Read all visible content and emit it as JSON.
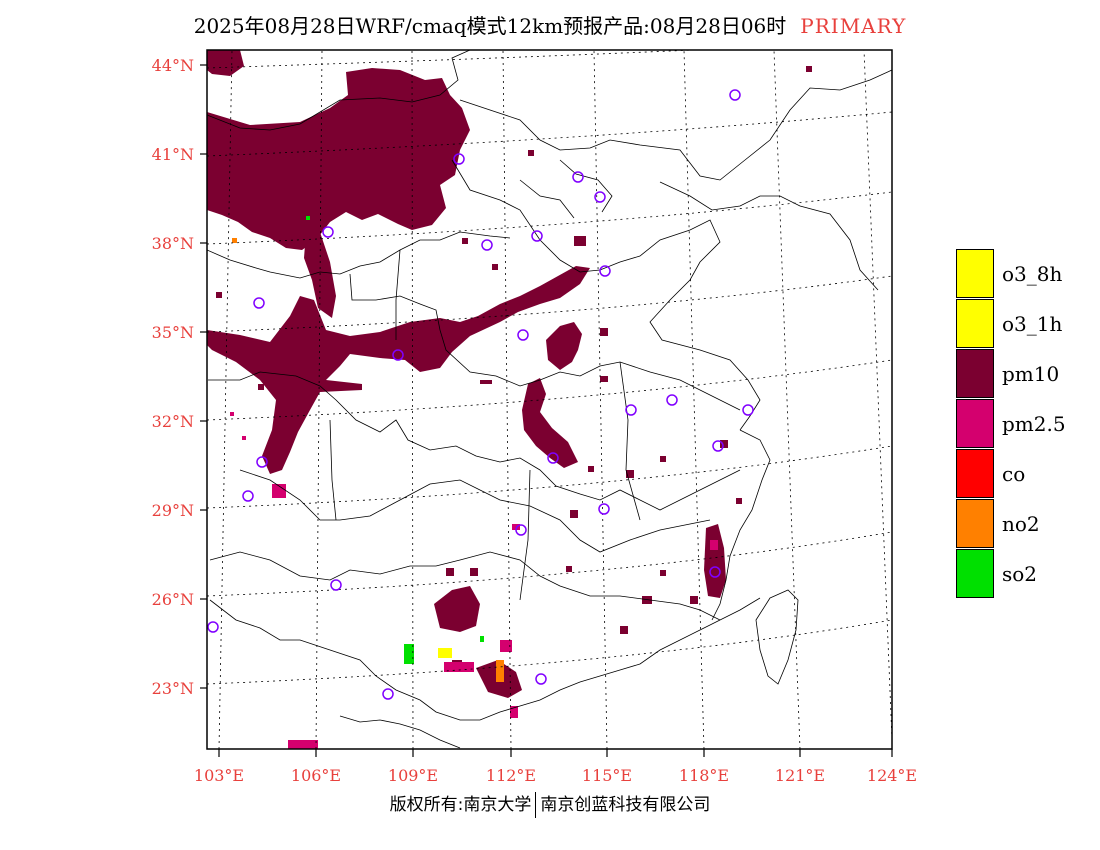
{
  "title": {
    "main": "2025年08月28日WRF/cmaq模式12km预报产品:08月28日06时",
    "tag": "PRIMARY"
  },
  "colors": {
    "pm10": "#7b0030",
    "pm25": "#d4006e",
    "o3": "#ffff00",
    "co": "#ff0000",
    "no2": "#ff8000",
    "so2": "#00e000",
    "axis_label": "#e8403c",
    "station": "#8000ff"
  },
  "lat_labels": [
    "44°N",
    "41°N",
    "38°N",
    "35°N",
    "32°N",
    "29°N",
    "26°N",
    "23°N"
  ],
  "lon_labels": [
    "103°E",
    "106°E",
    "109°E",
    "112°E",
    "115°E",
    "118°E",
    "121°E",
    "124°E"
  ],
  "legend": [
    {
      "label": "o3_8h",
      "color": "#ffff00"
    },
    {
      "label": "o3_1h",
      "color": "#ffff00"
    },
    {
      "label": "pm10",
      "color": "#7b0030"
    },
    {
      "label": "pm2.5",
      "color": "#d4006e"
    },
    {
      "label": "co",
      "color": "#ff0000"
    },
    {
      "label": "no2",
      "color": "#ff8000"
    },
    {
      "label": "so2",
      "color": "#00e000"
    }
  ],
  "footer": {
    "left": "版权所有:南京大学",
    "right": "南京创蓝科技有限公司"
  }
}
